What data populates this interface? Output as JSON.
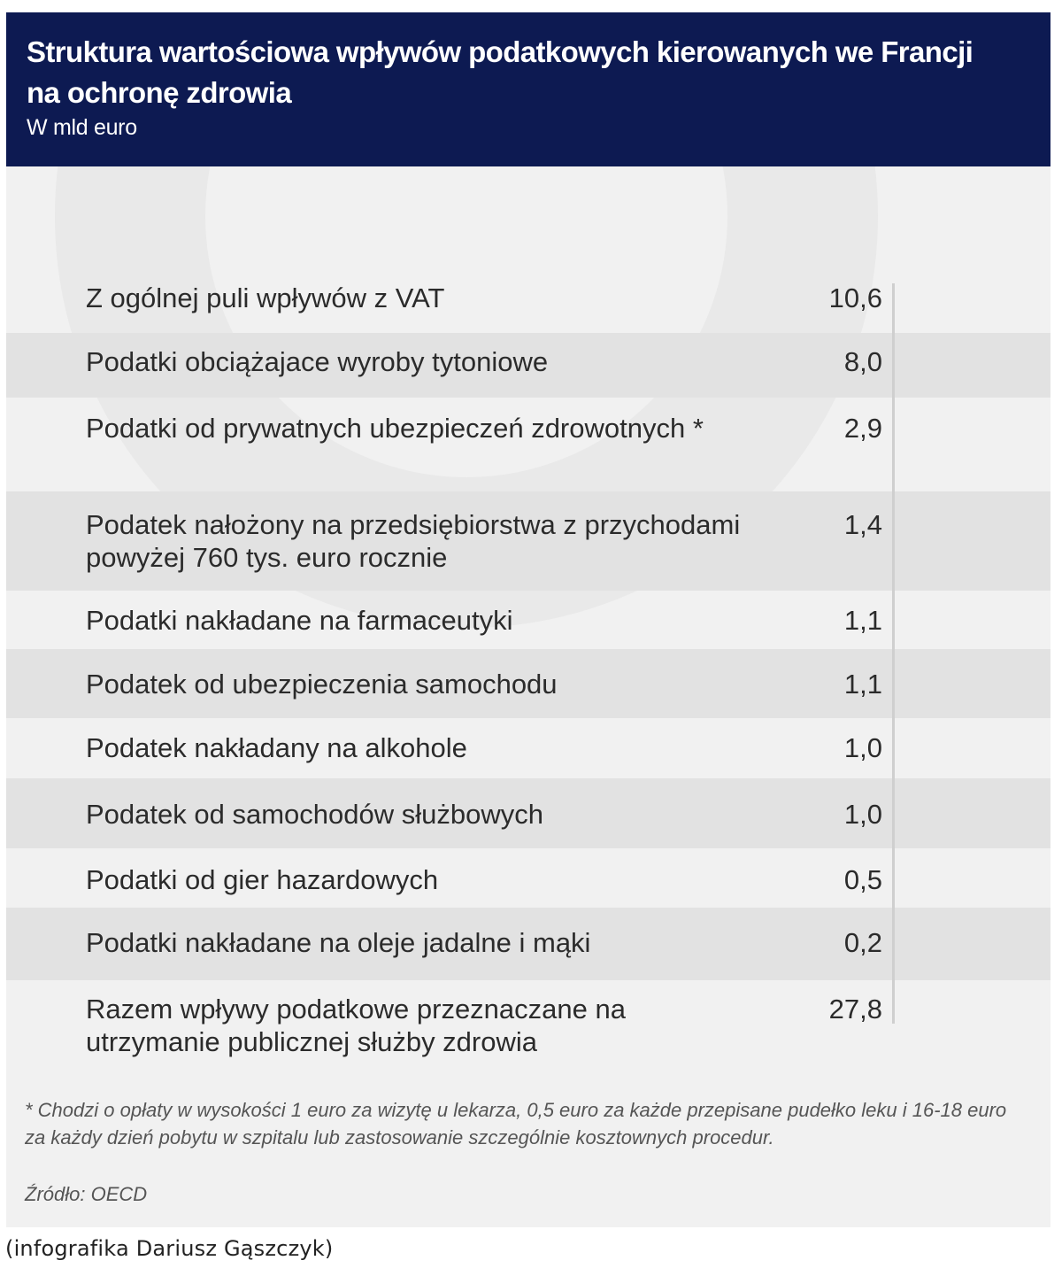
{
  "header": {
    "title": "Struktura wartościowa wpływów podatkowych kierowanych we Francji na ochronę zdrowia",
    "subtitle": "W mld euro"
  },
  "chart_data": {
    "type": "table",
    "rows": [
      {
        "label": "Z ogólnej puli wpływów z VAT",
        "value": "10,6"
      },
      {
        "label": "Podatki obciążajace wyroby tytoniowe",
        "value": "8,0"
      },
      {
        "label": "Podatki od prywatnych ubezpieczeń zdrowotnych *",
        "value": "2,9"
      },
      {
        "label": "Podatek nałożony na przedsiębiorstwa z przychodami powyżej 760 tys. euro rocznie",
        "value": "1,4"
      },
      {
        "label": "Podatki nakładane na farmaceutyki",
        "value": "1,1"
      },
      {
        "label": "Podatek od ubezpieczenia samochodu",
        "value": "1,1"
      },
      {
        "label": "Podatek nakładany na alkohole",
        "value": "1,0"
      },
      {
        "label": "Podatek od samochodów służbowych",
        "value": "1,0"
      },
      {
        "label": "Podatki od gier hazardowych",
        "value": "0,5"
      },
      {
        "label": "Podatki nakładane na oleje jadalne i mąki",
        "value": "0,2"
      },
      {
        "label": "Razem wpływy podatkowe przeznaczane na utrzymanie publicznej służby zdrowia",
        "value": "27,8"
      }
    ]
  },
  "footer": {
    "note": "* Chodzi o opłaty w wysokości 1 euro za wizytę u lekarza, 0,5 euro za każde przepisane pudełko leku i 16-18 euro za każdy dzień pobytu w szpitalu lub zastosowanie szczególnie kosztownych procedur.",
    "source": "Źródło: OECD",
    "credit": "(infografika Dariusz Gąszczyk)"
  }
}
